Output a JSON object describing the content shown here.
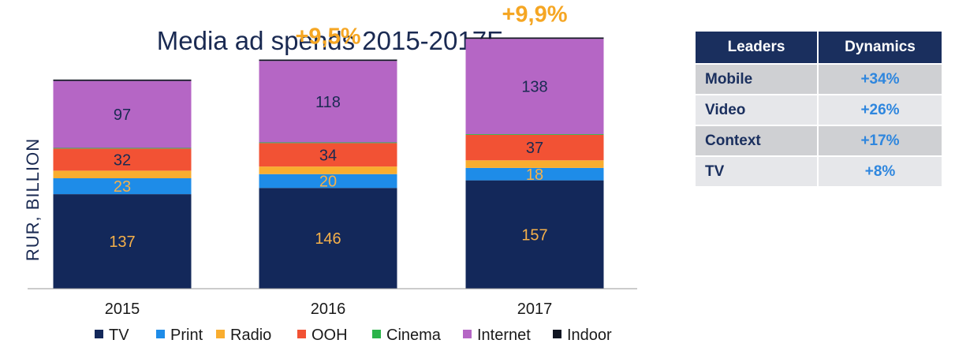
{
  "chart_data": {
    "type": "bar",
    "stacked": true,
    "title": "Media ad spends 2015-2017F",
    "ylabel": "RUR, BILLION",
    "xlabel": "",
    "categories": [
      "2015",
      "2016",
      "2017"
    ],
    "series": [
      {
        "name": "TV",
        "color": "#13285a",
        "values": [
          137,
          146,
          157
        ],
        "labels": [
          "137",
          "146",
          "157"
        ]
      },
      {
        "name": "Print",
        "color": "#1e8ce8",
        "values": [
          23,
          20,
          18
        ],
        "labels": [
          "23",
          "20",
          "18"
        ]
      },
      {
        "name": "Radio",
        "color": "#f9ad2f",
        "values": [
          11,
          11,
          11
        ],
        "labels": [
          "",
          "",
          ""
        ]
      },
      {
        "name": "OOH",
        "color": "#f25234",
        "values": [
          32,
          34,
          37
        ],
        "labels": [
          "32",
          "34",
          "37"
        ]
      },
      {
        "name": "Cinema",
        "color": "#2bb34a",
        "values": [
          1,
          1,
          1
        ],
        "labels": [
          "",
          "",
          ""
        ]
      },
      {
        "name": "Internet",
        "color": "#b566c5",
        "values": [
          97,
          118,
          138
        ],
        "labels": [
          "97",
          "118",
          "138"
        ]
      },
      {
        "name": "Indoor",
        "color": "#101522",
        "values": [
          2,
          2,
          2
        ],
        "labels": [
          "",
          "",
          ""
        ]
      }
    ],
    "growth_labels": [
      "",
      "+9,5%",
      "+9,9%"
    ],
    "growth_color": "#f5a623",
    "ylim": [
      0,
      400
    ],
    "grid": false,
    "legend_position": "bottom"
  },
  "table": {
    "headers": [
      "Leaders",
      "Dynamics"
    ],
    "rows": [
      {
        "leader": "Mobile",
        "dynamics": "+34%"
      },
      {
        "leader": "Video",
        "dynamics": "+26%"
      },
      {
        "leader": "Context",
        "dynamics": "+17%"
      },
      {
        "leader": "TV",
        "dynamics": "+8%"
      }
    ],
    "header_color": "#1a2f5e",
    "value_color": "#2e86de"
  }
}
